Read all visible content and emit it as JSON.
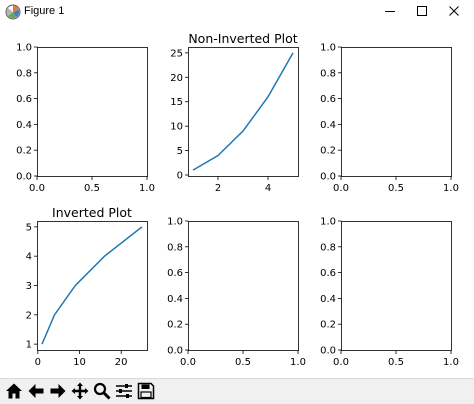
{
  "window": {
    "title": "Figure 1",
    "app_icon": "matplotlib-icon",
    "controls": [
      "minimize-icon",
      "maximize-icon",
      "close-icon"
    ]
  },
  "toolbar": {
    "buttons": [
      "home-icon",
      "back-icon",
      "forward-icon",
      "pan-icon",
      "zoom-icon",
      "configure-subplots-icon",
      "save-icon"
    ]
  },
  "chart_data": [
    {
      "type": "line",
      "position": "row1-col1",
      "title": "",
      "x": [],
      "series": [],
      "xlim": [
        0,
        1
      ],
      "ylim": [
        0,
        1
      ],
      "xticks": [
        "0.0",
        "0.5",
        "1.0"
      ],
      "yticks": [
        "0.0",
        "0.2",
        "0.4",
        "0.6",
        "0.8",
        "1.0"
      ]
    },
    {
      "type": "line",
      "position": "row1-col2",
      "title": "Non-Inverted Plot",
      "x": [
        1,
        2,
        3,
        4,
        5
      ],
      "series": [
        {
          "values": [
            1,
            4,
            9,
            16,
            25
          ],
          "color": "#1f77b4"
        }
      ],
      "xlim": [
        0.8,
        5.2
      ],
      "ylim": [
        -0.2,
        26.2
      ],
      "xticks": [
        "2",
        "4"
      ],
      "yticks": [
        "0",
        "5",
        "10",
        "15",
        "20",
        "25"
      ]
    },
    {
      "type": "line",
      "position": "row1-col3",
      "title": "",
      "x": [],
      "series": [],
      "xlim": [
        0,
        1
      ],
      "ylim": [
        0,
        1
      ],
      "xticks": [
        "0.0",
        "0.5",
        "1.0"
      ],
      "yticks": [
        "0.0",
        "0.2",
        "0.4",
        "0.6",
        "0.8",
        "1.0"
      ]
    },
    {
      "type": "line",
      "position": "row2-col1",
      "title": "Inverted Plot",
      "x": [
        1,
        4,
        9,
        16,
        25
      ],
      "series": [
        {
          "values": [
            1,
            2,
            3,
            4,
            5
          ],
          "color": "#1f77b4"
        }
      ],
      "xlim": [
        -0.2,
        26.2
      ],
      "ylim": [
        0.8,
        5.2
      ],
      "xticks": [
        "0",
        "10",
        "20"
      ],
      "yticks": [
        "1",
        "2",
        "3",
        "4",
        "5"
      ]
    },
    {
      "type": "line",
      "position": "row2-col2",
      "title": "",
      "x": [],
      "series": [],
      "xlim": [
        0,
        1
      ],
      "ylim": [
        0,
        1
      ],
      "xticks": [
        "0.0",
        "0.5",
        "1.0"
      ],
      "yticks": [
        "0.0",
        "0.2",
        "0.4",
        "0.6",
        "0.8",
        "1.0"
      ]
    },
    {
      "type": "line",
      "position": "row2-col3",
      "title": "",
      "x": [],
      "series": [],
      "xlim": [
        0,
        1
      ],
      "ylim": [
        0,
        1
      ],
      "xticks": [
        "0.0",
        "0.5",
        "1.0"
      ],
      "yticks": [
        "0.0",
        "0.2",
        "0.4",
        "0.6",
        "0.8",
        "1.0"
      ]
    }
  ]
}
